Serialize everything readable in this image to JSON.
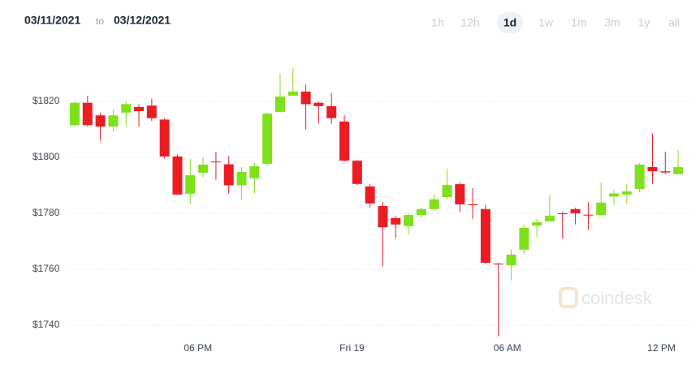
{
  "date_range": {
    "from": "03/11/2021",
    "separator": "to",
    "to": "03/12/2021"
  },
  "ranges": {
    "options": [
      "1h",
      "12h",
      "1d",
      "1w",
      "1m",
      "3m",
      "1y",
      "all"
    ],
    "selected": 2
  },
  "chart_data": {
    "type": "candlestick",
    "watermark": "coindesk",
    "categories": [
      null,
      null,
      null,
      null,
      null,
      null,
      null,
      null,
      null,
      null,
      null,
      null,
      null,
      null,
      null,
      null,
      null,
      null,
      null,
      null,
      null,
      null,
      null,
      null,
      null,
      null,
      null,
      null,
      null,
      null,
      null,
      null,
      null,
      null,
      null,
      null,
      null,
      null,
      null,
      null,
      null,
      null,
      null,
      null,
      null,
      null,
      null,
      null
    ],
    "open": [
      1811.5,
      1819.5,
      1815,
      1811,
      1816,
      1818,
      1818.5,
      1813.5,
      1800.3,
      1787,
      1794.5,
      1798.5,
      1797.5,
      1790,
      1792.5,
      1797.7,
      1816.2,
      1822,
      1823.5,
      1819.5,
      1818.3,
      1812.8,
      1798.8,
      1789.6,
      1782.6,
      1778.3,
      1775.4,
      1779.4,
      1781.5,
      1785.8,
      1790.4,
      1783.2,
      1781.5,
      1762,
      1761.4,
      1767,
      1775.6,
      1777.1,
      1780,
      1781.5,
      1779.5,
      1779.4,
      1786,
      1786.7,
      1788.7,
      1796.5,
      1795,
      1794
    ],
    "high": [
      1820,
      1822,
      1816,
      1817,
      1820,
      1819,
      1821,
      1814,
      1801,
      1799.5,
      1800,
      1802,
      1800.5,
      1796.5,
      1798,
      1816,
      1830,
      1832,
      1826,
      1820,
      1823,
      1815,
      1799,
      1790.5,
      1784,
      1779,
      1780,
      1782,
      1787,
      1796,
      1791,
      1789,
      1783,
      1762.3,
      1767,
      1776,
      1778,
      1786.5,
      1780.5,
      1782,
      1784,
      1791,
      1788.5,
      1790.5,
      1798,
      1808.5,
      1802,
      1802.5
    ],
    "low": [
      1811,
      1811,
      1806,
      1809,
      1811,
      1811,
      1813,
      1799.5,
      1786.5,
      1783.5,
      1793,
      1792,
      1787,
      1785,
      1787,
      1797,
      1816,
      1822,
      1810,
      1812,
      1812,
      1798.5,
      1790,
      1782,
      1761,
      1771,
      1772.5,
      1778.5,
      1781,
      1785,
      1780.5,
      1778,
      1762,
      1736,
      1756,
      1765.5,
      1771.5,
      1777,
      1771,
      1776,
      1774,
      1779,
      1783,
      1783.5,
      1787.5,
      1790.5,
      1794,
      1794
    ],
    "close": [
      1819.5,
      1811.5,
      1811,
      1815,
      1819,
      1816.5,
      1814,
      1800.3,
      1786.7,
      1793.6,
      1797.4,
      1798.2,
      1790,
      1794.8,
      1796.8,
      1815.6,
      1821.7,
      1823.5,
      1819,
      1818.3,
      1814,
      1798.8,
      1790.5,
      1783.5,
      1775,
      1776,
      1779.4,
      1781.5,
      1785,
      1790.1,
      1783.2,
      1782.9,
      1762.3,
      1761.7,
      1765.2,
      1774.8,
      1776.8,
      1779.1,
      1779.7,
      1780,
      1779.2,
      1783.8,
      1787.1,
      1787.8,
      1797.4,
      1795,
      1794.6,
      1796.5
    ],
    "up_color": "#7fe01c",
    "down_color": "#ea1c24",
    "ylim": [
      1734,
      1840
    ],
    "yticks": [
      {
        "value": 1740,
        "label": "$1740"
      },
      {
        "value": 1760,
        "label": "$1760"
      },
      {
        "value": 1780,
        "label": "$1780"
      },
      {
        "value": 1800,
        "label": "$1800"
      },
      {
        "value": 1820,
        "label": "$1820"
      }
    ],
    "xticks": [
      {
        "value": 9.6,
        "label": "06 PM"
      },
      {
        "value": 21.6,
        "label": "Fri 19"
      },
      {
        "value": 33.7,
        "label": "06 AM"
      },
      {
        "value": 45.7,
        "label": "12 PM"
      }
    ],
    "grid": true
  }
}
